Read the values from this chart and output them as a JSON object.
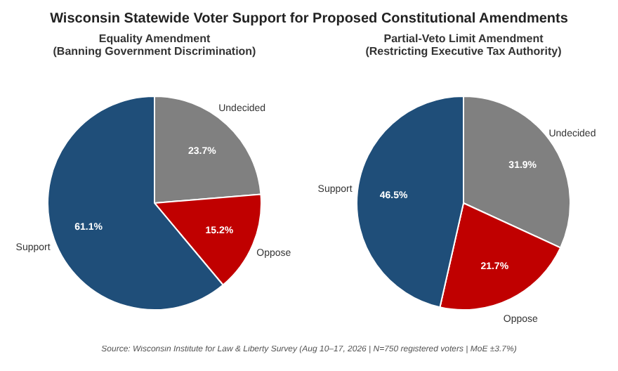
{
  "chart_data": [
    {
      "type": "pie",
      "title": "Equality Amendment",
      "subtitle": "(Banning Government Discrimination)",
      "categories": [
        "Undecided",
        "Oppose",
        "Support"
      ],
      "values": [
        23.7,
        15.2,
        61.1
      ],
      "colors": [
        "#808080",
        "#c00000",
        "#1f4e79"
      ],
      "value_labels": [
        "23.7%",
        "15.2%",
        "61.1%"
      ],
      "legend": false,
      "annotations": [
        "Wisconsin Statewide Voter Support for Proposed Constitutional Amendments",
        "Source: Wisconsin Institute for Law & Liberty Survey (Aug 10–17, 2026 | N=750 registered voters | MoE ±3.7%)"
      ]
    },
    {
      "type": "pie",
      "title": "Partial-Veto Limit Amendment",
      "subtitle": "(Restricting Executive Tax Authority)",
      "categories": [
        "Undecided",
        "Oppose",
        "Support"
      ],
      "values": [
        31.9,
        21.7,
        46.5
      ],
      "colors": [
        "#808080",
        "#c00000",
        "#1f4e79"
      ],
      "value_labels": [
        "31.9%",
        "21.7%",
        "46.5%"
      ],
      "legend": false
    }
  ]
}
